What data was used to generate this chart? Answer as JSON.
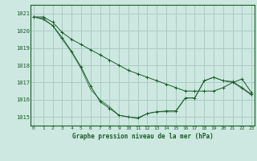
{
  "title": "Graphe pression niveau de la mer (hPa)",
  "background_color": "#cce8e0",
  "grid_color": "#aaccC4",
  "line_color": "#1a5c28",
  "xlim": [
    -0.3,
    23.3
  ],
  "ylim": [
    1014.5,
    1021.5
  ],
  "yticks": [
    1015,
    1016,
    1017,
    1018,
    1019,
    1020,
    1021
  ],
  "xticks": [
    0,
    1,
    2,
    3,
    4,
    5,
    6,
    7,
    8,
    9,
    10,
    11,
    12,
    13,
    14,
    15,
    16,
    17,
    18,
    19,
    20,
    21,
    22,
    23
  ],
  "series1": [
    1020.8,
    1020.8,
    1020.5,
    1019.9,
    1019.5,
    1019.2,
    1018.9,
    1018.6,
    1018.3,
    1018.0,
    1017.7,
    1017.5,
    1017.3,
    1017.1,
    1016.9,
    1016.7,
    1016.5,
    1016.5,
    1016.5,
    1016.5,
    1016.7,
    1017.0,
    1017.2,
    1016.4
  ],
  "series2": [
    1020.8,
    1020.7,
    1020.3,
    1019.6,
    1018.8,
    1017.9,
    1016.8,
    1015.9,
    1015.5,
    1015.1,
    1015.0,
    1014.95,
    1015.2,
    1015.3,
    1015.35,
    1015.35,
    1016.1,
    1016.1,
    1017.1,
    1017.3,
    1017.1,
    1017.05,
    1016.7,
    1016.3
  ],
  "series3": [
    1020.8,
    1020.65,
    1020.3,
    1019.5,
    1018.75,
    1017.8,
    1016.6,
    1016.0,
    1015.6,
    1015.1,
    1015.0,
    1014.9,
    1015.2,
    1015.3,
    1015.3,
    1015.3,
    1016.1,
    1016.1,
    1017.1,
    1017.3,
    1017.1,
    1017.0,
    1016.65,
    1016.25
  ]
}
